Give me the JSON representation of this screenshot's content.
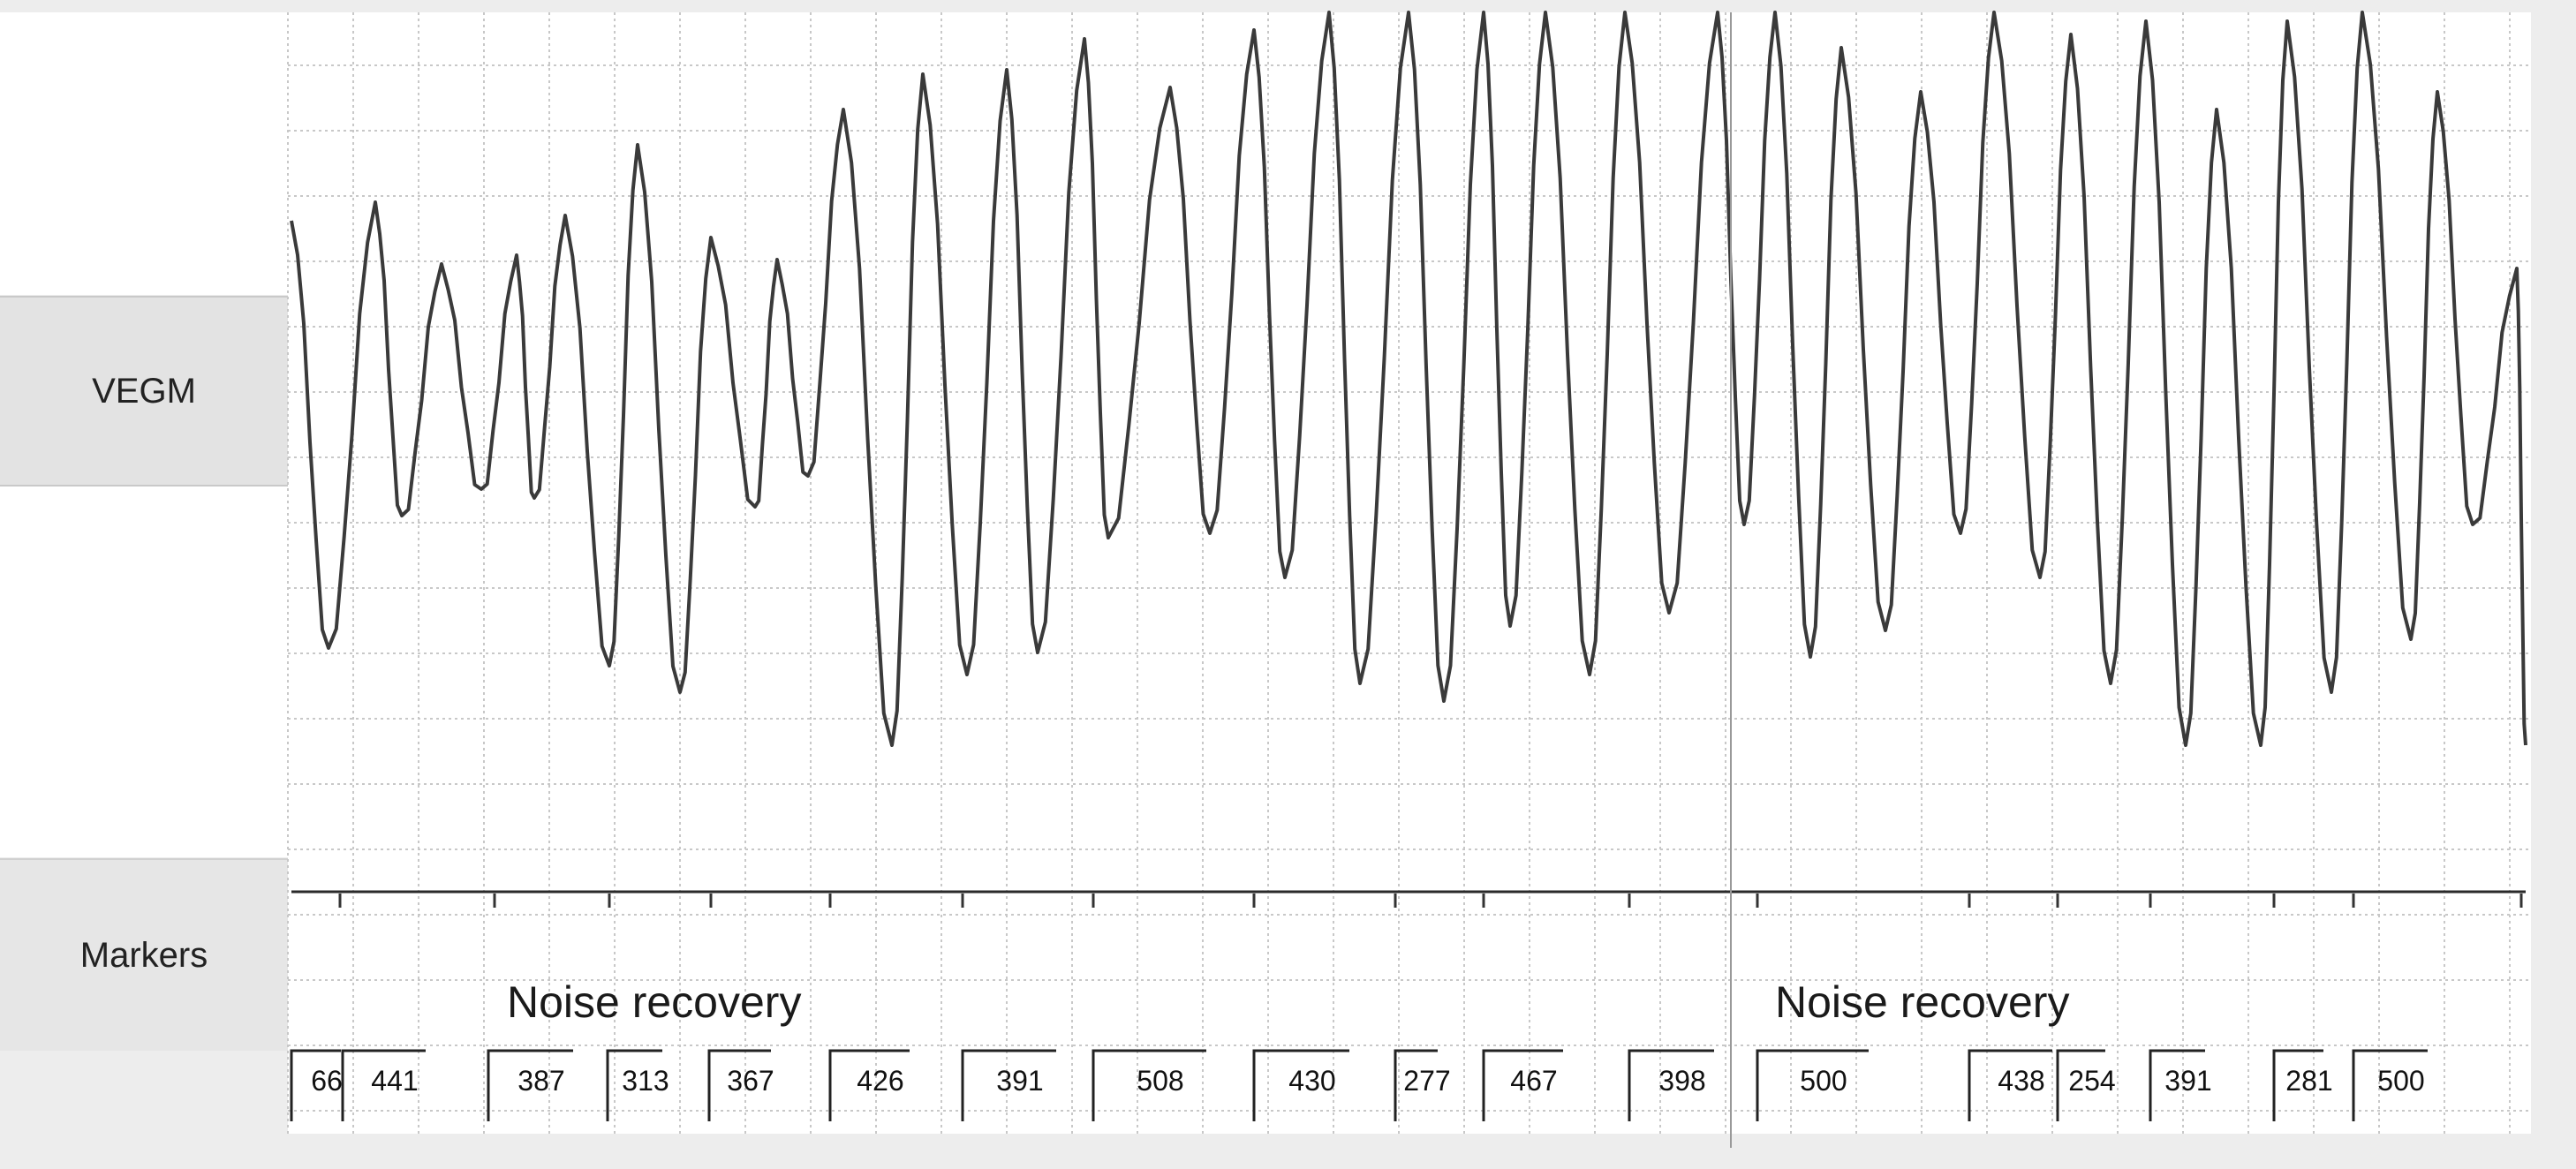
{
  "channels": {
    "vegm_label": "VEGM",
    "markers_label": "Markers"
  },
  "annotations": {
    "noise_recovery_1": "Noise recovery",
    "noise_recovery_2": "Noise recovery"
  },
  "intervals": [
    {
      "value": "66",
      "marker": 1
    },
    {
      "value": "441",
      "marker": 1
    },
    {
      "value": "387",
      "marker": 1
    },
    {
      "value": "313",
      "marker": 1
    },
    {
      "value": "367",
      "marker": 1
    },
    {
      "value": "426",
      "marker": 1
    },
    {
      "value": "391",
      "marker": 1
    },
    {
      "value": "508",
      "marker": 1
    },
    {
      "value": "430",
      "marker": 1
    },
    {
      "value": "277",
      "marker": 1
    },
    {
      "value": "467",
      "marker": 1
    },
    {
      "value": "398",
      "marker": 1
    },
    {
      "value": "500",
      "marker": 1
    },
    {
      "value": "438",
      "marker": 1
    },
    {
      "value": "254",
      "marker": 1
    },
    {
      "value": "391",
      "marker": 1
    },
    {
      "value": "281",
      "marker": 1
    },
    {
      "value": "500",
      "marker": 1
    }
  ],
  "colors": {
    "trace": "#3a3a3a",
    "grid": "#c8c8c8",
    "paper": "#ffffff"
  }
}
